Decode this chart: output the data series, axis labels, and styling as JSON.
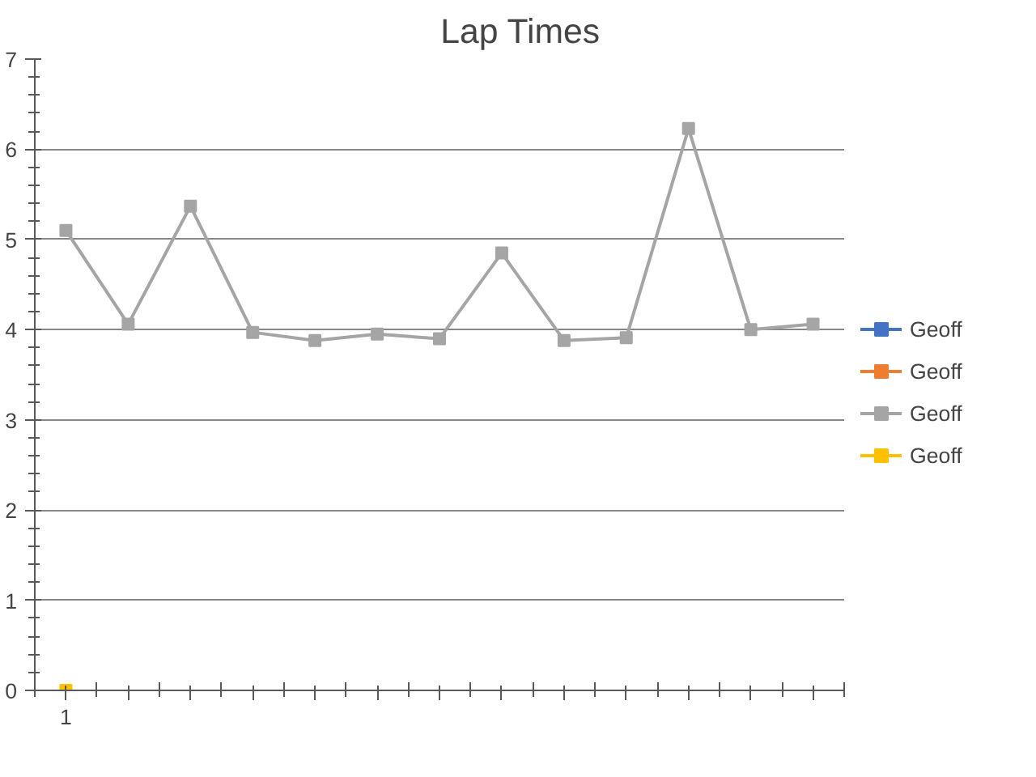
{
  "chart_data": {
    "type": "line",
    "title": "Lap Times",
    "categories": [
      "1",
      null,
      null,
      null,
      null,
      null,
      null,
      null,
      null,
      null,
      null,
      null,
      null
    ],
    "series": [
      {
        "name": "Geoff",
        "color": "#4472c4",
        "values": [
          null,
          null,
          null,
          null,
          null,
          null,
          null,
          null,
          null,
          null,
          null,
          null,
          null
        ]
      },
      {
        "name": "Geoff",
        "color": "#ed7d31",
        "values": [
          null,
          null,
          null,
          null,
          null,
          null,
          null,
          null,
          null,
          null,
          null,
          null,
          null
        ]
      },
      {
        "name": "Geoff",
        "color": "#a5a5a5",
        "values": [
          5.1,
          4.06,
          5.37,
          3.97,
          3.88,
          3.95,
          3.9,
          4.85,
          3.88,
          3.91,
          6.23,
          4.0,
          4.06
        ]
      },
      {
        "name": "Geoff",
        "color": "#ffc000",
        "values": [
          0,
          null,
          null,
          null,
          null,
          null,
          null,
          null,
          null,
          null,
          null,
          null,
          null
        ]
      }
    ],
    "ylim": [
      0,
      7
    ],
    "yticks": [
      0,
      1,
      2,
      3,
      4,
      5,
      6,
      7
    ],
    "grid": "y",
    "legend": "right",
    "marker": "square",
    "line_style": "solid"
  }
}
